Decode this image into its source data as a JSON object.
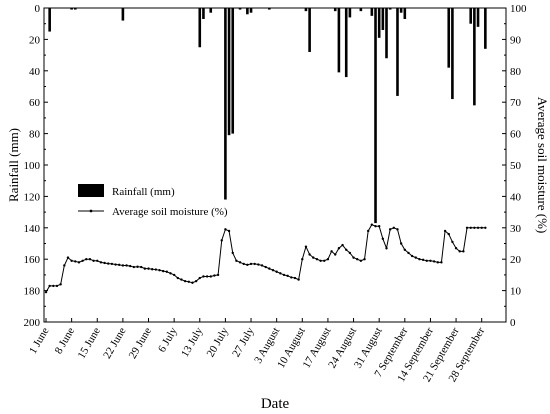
{
  "chart_data": {
    "type": "bar+line",
    "xlabel": "Date",
    "ylabel_left": "Rainfall (mm)",
    "ylabel_right": "Average soil moisture (%)",
    "ylim_left": [
      0,
      200
    ],
    "ylim_left_inverted": true,
    "yticks_left": [
      "0",
      "20",
      "40",
      "60",
      "80",
      "100",
      "120",
      "140",
      "160",
      "180",
      "200"
    ],
    "ylim_right": [
      0,
      100
    ],
    "yticks_right": [
      "0",
      "10",
      "20",
      "30",
      "40",
      "50",
      "60",
      "70",
      "80",
      "90",
      "100"
    ],
    "x_range_days": [
      0,
      124
    ],
    "x_start": "1 June",
    "x_ticks": [
      {
        "day": 0,
        "label": "1 June"
      },
      {
        "day": 7,
        "label": "8 June"
      },
      {
        "day": 14,
        "label": "15 June"
      },
      {
        "day": 21,
        "label": "22 June"
      },
      {
        "day": 28,
        "label": "29 June"
      },
      {
        "day": 35,
        "label": "6 July"
      },
      {
        "day": 42,
        "label": "13 July"
      },
      {
        "day": 49,
        "label": "20 July"
      },
      {
        "day": 56,
        "label": "27 July"
      },
      {
        "day": 63,
        "label": "3 August"
      },
      {
        "day": 70,
        "label": "10 August"
      },
      {
        "day": 77,
        "label": "17 August"
      },
      {
        "day": 84,
        "label": "24 August"
      },
      {
        "day": 91,
        "label": "31 August"
      },
      {
        "day": 98,
        "label": "7 September"
      },
      {
        "day": 105,
        "label": "14 September"
      },
      {
        "day": 112,
        "label": "21 September"
      },
      {
        "day": 119,
        "label": "28 September"
      }
    ],
    "legend_position": "center-left",
    "series": [
      {
        "name": "Rainfall (mm)",
        "kind": "bar",
        "points": [
          [
            1,
            15
          ],
          [
            7,
            1
          ],
          [
            8,
            1
          ],
          [
            21,
            8
          ],
          [
            42,
            25
          ],
          [
            43,
            7
          ],
          [
            45,
            3
          ],
          [
            49,
            122
          ],
          [
            50,
            81
          ],
          [
            51,
            80
          ],
          [
            53,
            1
          ],
          [
            55,
            4
          ],
          [
            56,
            3
          ],
          [
            61,
            1
          ],
          [
            71,
            2
          ],
          [
            72,
            28
          ],
          [
            79,
            2
          ],
          [
            80,
            41
          ],
          [
            82,
            44
          ],
          [
            83,
            6
          ],
          [
            86,
            2
          ],
          [
            89,
            5
          ],
          [
            90,
            137
          ],
          [
            91,
            19
          ],
          [
            92,
            14
          ],
          [
            93,
            32
          ],
          [
            94,
            1
          ],
          [
            96,
            56
          ],
          [
            97,
            3
          ],
          [
            98,
            7
          ],
          [
            110,
            38
          ],
          [
            111,
            58
          ],
          [
            116,
            10
          ],
          [
            117,
            62
          ],
          [
            118,
            12
          ],
          [
            120,
            26
          ]
        ]
      },
      {
        "name": "Average soil moisture (%)",
        "kind": "line",
        "points": [
          [
            0,
            9.5
          ],
          [
            1,
            11.5
          ],
          [
            2,
            11.5
          ],
          [
            3,
            11.5
          ],
          [
            4,
            12
          ],
          [
            5,
            18
          ],
          [
            6,
            20.5
          ],
          [
            7,
            19.5
          ],
          [
            8,
            19.3
          ],
          [
            9,
            19
          ],
          [
            10,
            19.5
          ],
          [
            11,
            20
          ],
          [
            12,
            20
          ],
          [
            13,
            19.5
          ],
          [
            14,
            19.5
          ],
          [
            15,
            19
          ],
          [
            16,
            18.8
          ],
          [
            17,
            18.6
          ],
          [
            18,
            18.5
          ],
          [
            19,
            18.3
          ],
          [
            20,
            18.2
          ],
          [
            21,
            18
          ],
          [
            22,
            18
          ],
          [
            23,
            17.8
          ],
          [
            24,
            17.5
          ],
          [
            25,
            17.6
          ],
          [
            26,
            17.5
          ],
          [
            27,
            17
          ],
          [
            28,
            17
          ],
          [
            29,
            16.8
          ],
          [
            30,
            16.7
          ],
          [
            31,
            16.5
          ],
          [
            32,
            16.2
          ],
          [
            33,
            16
          ],
          [
            34,
            15.5
          ],
          [
            35,
            15
          ],
          [
            36,
            14
          ],
          [
            37,
            13.5
          ],
          [
            38,
            13
          ],
          [
            39,
            12.8
          ],
          [
            40,
            12.5
          ],
          [
            41,
            13
          ],
          [
            42,
            14
          ],
          [
            43,
            14.5
          ],
          [
            44,
            14.5
          ],
          [
            45,
            14.5
          ],
          [
            46,
            14.8
          ],
          [
            47,
            15
          ],
          [
            48,
            26
          ],
          [
            49,
            29.5
          ],
          [
            50,
            29
          ],
          [
            51,
            22
          ],
          [
            52,
            19.5
          ],
          [
            53,
            19
          ],
          [
            54,
            18.5
          ],
          [
            55,
            18.2
          ],
          [
            56,
            18.5
          ],
          [
            57,
            18.5
          ],
          [
            58,
            18.3
          ],
          [
            59,
            18
          ],
          [
            60,
            17.5
          ],
          [
            61,
            17
          ],
          [
            62,
            16.5
          ],
          [
            63,
            16
          ],
          [
            64,
            15.5
          ],
          [
            65,
            15
          ],
          [
            66,
            14.7
          ],
          [
            67,
            14.2
          ],
          [
            68,
            14
          ],
          [
            69,
            13.5
          ],
          [
            70,
            20
          ],
          [
            71,
            24
          ],
          [
            72,
            21.5
          ],
          [
            73,
            20.5
          ],
          [
            74,
            20
          ],
          [
            75,
            19.5
          ],
          [
            76,
            19.5
          ],
          [
            77,
            20
          ],
          [
            78,
            22.5
          ],
          [
            79,
            21.5
          ],
          [
            80,
            23.5
          ],
          [
            81,
            24.5
          ],
          [
            82,
            23
          ],
          [
            83,
            22
          ],
          [
            84,
            20.5
          ],
          [
            85,
            20
          ],
          [
            86,
            19.5
          ],
          [
            87,
            20
          ],
          [
            88,
            29
          ],
          [
            89,
            31
          ],
          [
            90,
            30.5
          ],
          [
            91,
            30.5
          ],
          [
            92,
            26.5
          ],
          [
            93,
            23.5
          ],
          [
            94,
            29.5
          ],
          [
            95,
            30
          ],
          [
            96,
            29.5
          ],
          [
            97,
            25
          ],
          [
            98,
            23
          ],
          [
            99,
            22
          ],
          [
            100,
            21
          ],
          [
            101,
            20.5
          ],
          [
            102,
            20
          ],
          [
            103,
            19.8
          ],
          [
            104,
            19.5
          ],
          [
            105,
            19.5
          ],
          [
            106,
            19.3
          ],
          [
            107,
            19
          ],
          [
            108,
            19
          ],
          [
            109,
            29
          ],
          [
            110,
            28
          ],
          [
            111,
            25.5
          ],
          [
            112,
            23.5
          ],
          [
            113,
            22.5
          ],
          [
            114,
            22.5
          ],
          [
            115,
            30
          ],
          [
            116,
            30
          ],
          [
            117,
            30
          ],
          [
            118,
            30
          ],
          [
            119,
            30
          ],
          [
            120,
            30
          ]
        ]
      }
    ]
  }
}
